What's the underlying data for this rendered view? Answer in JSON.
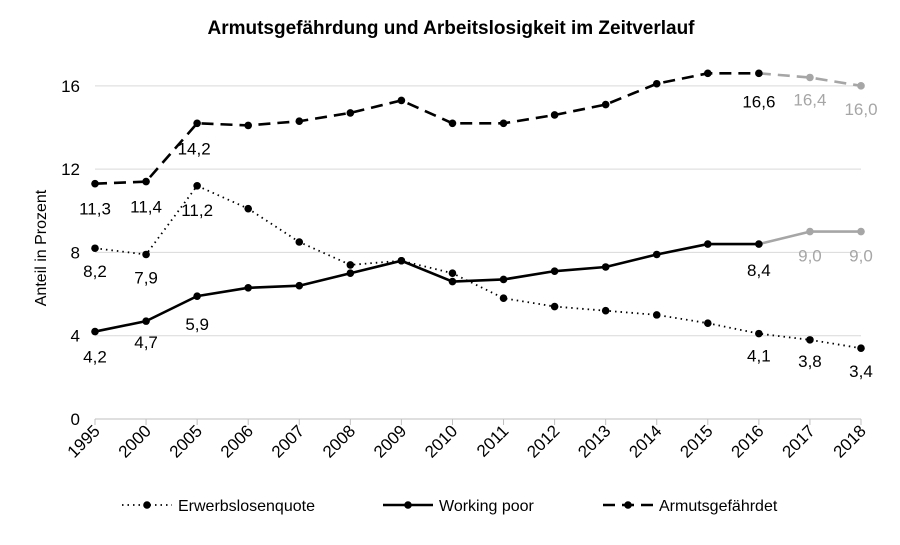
{
  "chart_data": {
    "type": "line",
    "title": "Armutsgefährdung und Arbeitslosigkeit im Zeitverlauf",
    "xlabel": "",
    "ylabel": "Anteil in Prozent",
    "ylim": [
      0,
      17
    ],
    "yticks": [
      "0",
      "4",
      "8",
      "12",
      "16"
    ],
    "categories": [
      "1995",
      "2000",
      "2005",
      "2006",
      "2007",
      "2008",
      "2009",
      "2010",
      "2011",
      "2012",
      "2013",
      "2014",
      "2015",
      "2016",
      "2017",
      "2018"
    ],
    "grid": true,
    "legend": "bottom",
    "projection_start_category": "2016",
    "projection_color": "#a6a6a6",
    "main_color": "#000000",
    "series": [
      {
        "name": "Erwerbslosenquote",
        "style": "dotted",
        "values": [
          8.2,
          7.9,
          11.2,
          10.1,
          8.5,
          7.4,
          7.6,
          7.0,
          5.8,
          5.4,
          5.2,
          5.0,
          4.6,
          4.1,
          3.8,
          3.4
        ],
        "labels": [
          "8,2",
          "7,9",
          "11,2",
          "",
          "",
          "",
          "",
          "",
          "",
          "",
          "",
          "",
          "",
          "4,1",
          "3,8",
          "3,4"
        ],
        "projected": false
      },
      {
        "name": "Working poor",
        "style": "solid",
        "values": [
          4.2,
          4.7,
          5.9,
          6.3,
          6.4,
          7.0,
          7.6,
          6.6,
          6.7,
          7.1,
          7.3,
          7.9,
          8.4,
          8.4,
          9.0,
          9.0
        ],
        "labels": [
          "4,2",
          "4,7",
          "5,9",
          "",
          "",
          "",
          "",
          "",
          "",
          "",
          "",
          "",
          "",
          "8,4",
          "9,0",
          "9,0"
        ],
        "projected": true
      },
      {
        "name": "Armutsgefährdet",
        "style": "dashed",
        "values": [
          11.3,
          11.4,
          14.2,
          14.1,
          14.3,
          14.7,
          15.3,
          14.2,
          14.2,
          14.6,
          15.1,
          16.1,
          16.6,
          16.6,
          16.4,
          16.0
        ],
        "labels": [
          "11,3",
          "11,4",
          "14,2",
          "",
          "",
          "",
          "",
          "",
          "",
          "",
          "",
          "",
          "",
          "16,6",
          "16,4",
          "16,0"
        ],
        "projected": true
      }
    ]
  }
}
